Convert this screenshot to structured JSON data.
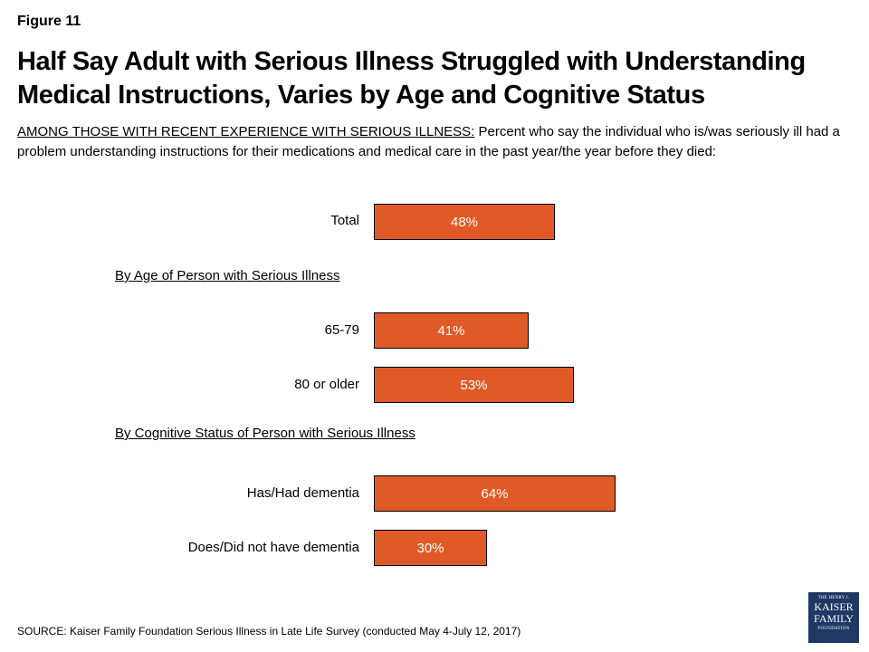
{
  "figure_label": "Figure 11",
  "title": "Half Say Adult with Serious Illness Struggled with Understanding Medical Instructions, Varies by Age and Cognitive Status",
  "subtitle": {
    "lead": "AMONG THOSE WITH RECENT EXPERIENCE WITH SERIOUS ILLNESS:",
    "text": " Percent who say the individual who is/was seriously ill had a problem understanding instructions for their medications and medical care in the past year/the year before they died:"
  },
  "source": "SOURCE: Kaiser Family Foundation Serious Illness in Late Life Survey (conducted May 4-July 12, 2017)",
  "logo": {
    "line1": "THE HENRY J.",
    "line2": "KAISER",
    "line3": "FAMILY",
    "line4": "FOUNDATION"
  },
  "colors": {
    "bar": "#e05a28",
    "bar_border": "#000000",
    "bar_text": "#ffffff"
  },
  "chart_data": {
    "type": "bar",
    "orientation": "horizontal",
    "sections": [
      "By Age of Person with Serious Illness",
      "By Cognitive Status of Person with Serious Illness"
    ],
    "categories": [
      "Total",
      "65-79",
      "80 or older",
      "Has/Had dementia",
      "Does/Did not have dementia"
    ],
    "values": [
      48,
      41,
      53,
      64,
      30
    ],
    "data_labels": [
      "48%",
      "41%",
      "53%",
      "64%",
      "30%"
    ],
    "xlim": [
      0,
      100
    ],
    "grid": false,
    "legend": "none"
  }
}
